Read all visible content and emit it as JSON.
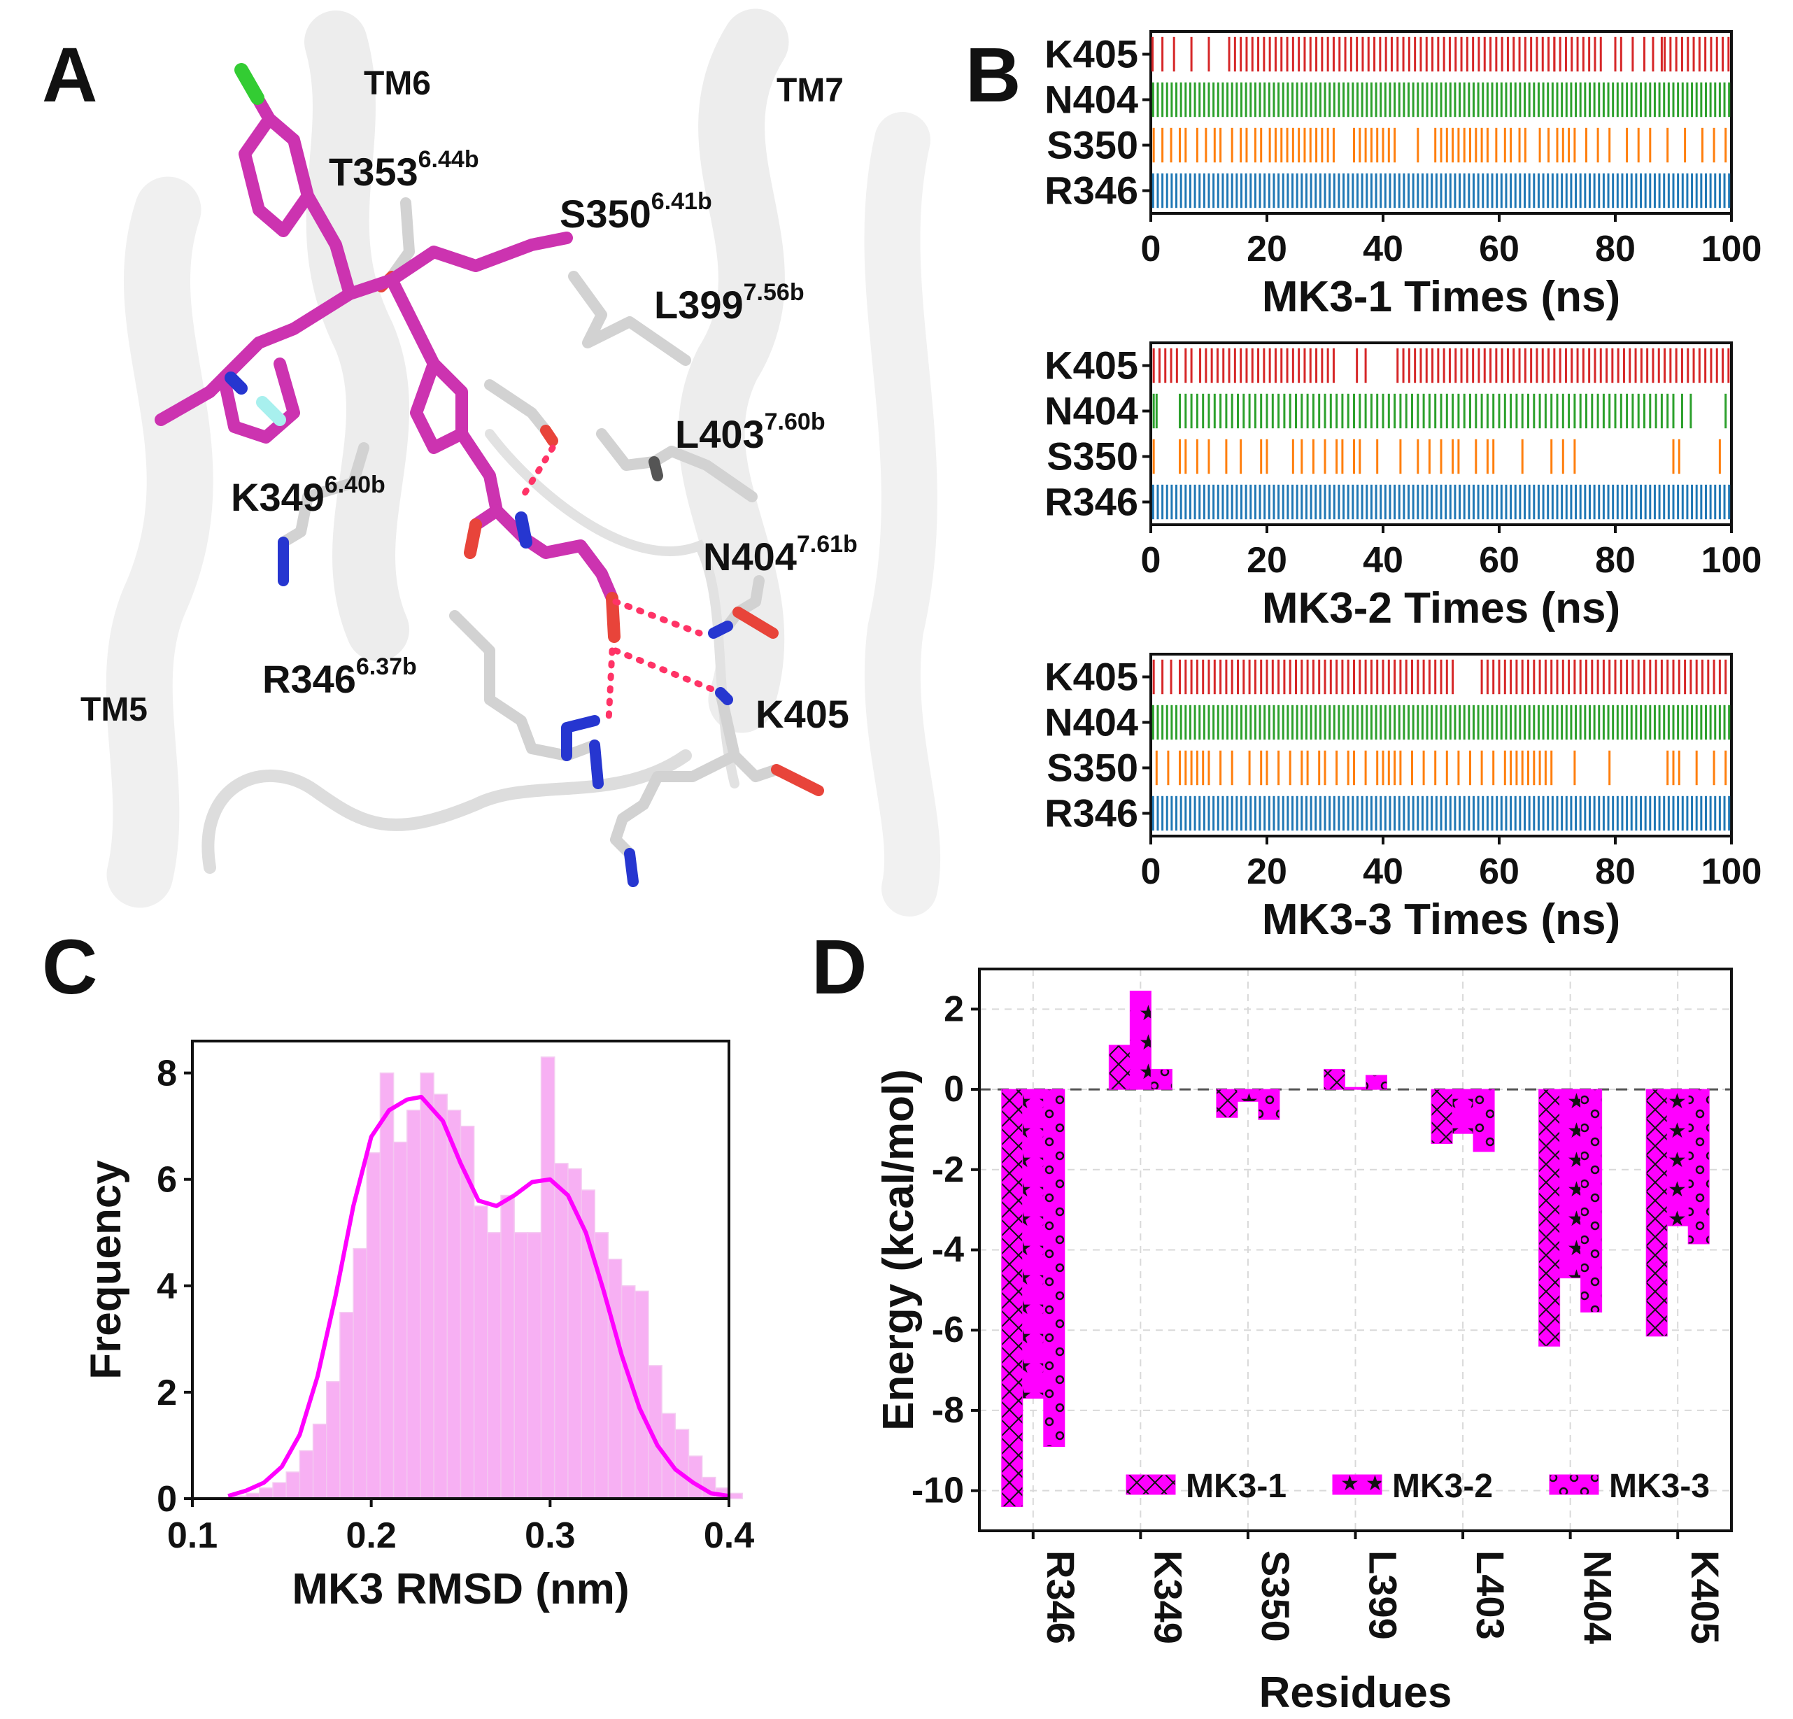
{
  "colors": {
    "magenta": "#cc33b0",
    "residue": "#d7d7d7",
    "oxygen": "#e8443a",
    "nitrogen": "#2636d0",
    "chlorine": "#33cc33",
    "fluorine": "#a8f0ee",
    "hbond": "#ff3366",
    "cartoon": "#ececec",
    "red": "#d62728",
    "green": "#2ca02c",
    "orange": "#ff7f0e",
    "blue": "#1f77b4",
    "hist": "#f7a8f2",
    "kde": "#ff00ff",
    "bar": "#ff00ff"
  },
  "panel_a": {
    "letter": "A",
    "helices": [
      "TM6",
      "TM7",
      "TM5"
    ],
    "residues": [
      {
        "id": "t353",
        "name": "T353",
        "sup": "6.44b"
      },
      {
        "id": "s350",
        "name": "S350",
        "sup": "6.41b"
      },
      {
        "id": "l399",
        "name": "L399",
        "sup": "7.56b"
      },
      {
        "id": "l403",
        "name": "L403",
        "sup": "7.60b"
      },
      {
        "id": "k349",
        "name": "K349",
        "sup": "6.40b"
      },
      {
        "id": "n404",
        "name": "N404",
        "sup": "7.61b"
      },
      {
        "id": "r346",
        "name": "R346",
        "sup": "6.37b"
      },
      {
        "id": "k405",
        "name": "K405",
        "sup": ""
      }
    ]
  },
  "panel_b": {
    "letter": "B",
    "subplots": [
      {
        "xlabel": "MK3-1 Times (ns)",
        "rows": [
          {
            "label": "K405",
            "color": "red",
            "events": [
              0.3,
              2,
              4,
              7,
              10,
              13.5,
              14.5,
              15.5,
              16.5,
              17.5,
              18.5,
              19.5,
              20.5,
              21.5,
              22.5,
              23.5,
              24.5,
              25.5,
              26.5,
              27.5,
              28.5,
              29.5,
              30.5,
              31.5,
              32.5,
              33.5,
              34.5,
              35.5,
              36.5,
              37.5,
              38.5,
              39.5,
              40.5,
              41.5,
              42.5,
              43.5,
              44.5,
              45.5,
              46.5,
              47.5,
              48.5,
              49.5,
              50.5,
              51.5,
              52.5,
              53.5,
              54.5,
              55.5,
              56.5,
              57.5,
              58.5,
              59.5,
              60.5,
              61.5,
              62.5,
              63.5,
              64.5,
              65.5,
              66.5,
              67.5,
              68.5,
              69.5,
              69.5,
              70.5,
              71.5,
              72.5,
              73.5,
              74.5,
              75.5,
              76.5,
              77.5,
              80,
              81,
              83,
              85,
              86.5,
              88,
              88.5,
              89.5,
              90.5,
              91.5,
              92.5,
              93.5,
              94.5,
              95.5,
              96.5,
              97.5,
              98.5,
              99.5
            ]
          },
          {
            "label": "N404",
            "color": "green",
            "events": "dense"
          },
          {
            "label": "S350",
            "color": "orange",
            "events": [
              0.5,
              2,
              3.5,
              5,
              6,
              8,
              9.5,
              11,
              12,
              14,
              15.5,
              16.5,
              18,
              19,
              20.5,
              21.5,
              22.5,
              23.5,
              24.5,
              25.5,
              26.5,
              27.5,
              28.5,
              29.5,
              30.5,
              31.5,
              35,
              36,
              37,
              38,
              39,
              40,
              41,
              42,
              46,
              49,
              50,
              51,
              52,
              53,
              54,
              55,
              56,
              57,
              58,
              59.5,
              61,
              62,
              63.5,
              64.5,
              67,
              68.5,
              70,
              71,
              72,
              73,
              75,
              77,
              79,
              82,
              84,
              86,
              89,
              92,
              95,
              97,
              99
            ]
          },
          {
            "label": "R346",
            "color": "blue",
            "events": "dense"
          }
        ]
      },
      {
        "xlabel": "MK3-2 Times (ns)",
        "rows": [
          {
            "label": "K405",
            "color": "red",
            "events": [
              0.5,
              1.5,
              2.5,
              3.5,
              4.5,
              6,
              7,
              8.5,
              9.5,
              10.5,
              11.5,
              12.5,
              13.5,
              14.5,
              15.5,
              16.5,
              17.5,
              18.5,
              19.5,
              20.5,
              21.5,
              22.5,
              23.5,
              24.5,
              25.5,
              26.5,
              27.5,
              28.5,
              29.5,
              30.5,
              31.5,
              35.5,
              37,
              42.5,
              43.5,
              44.5,
              45.5,
              46.5,
              47.5,
              48.5,
              49.5,
              50.5,
              51.5,
              52.5,
              53.5,
              54.5,
              55.5,
              56.5,
              57.5,
              58.5,
              59.5,
              60.5,
              61.5,
              62.5,
              63.5,
              64.5,
              65.5,
              66.5,
              67.5,
              68.5,
              69.5,
              70.5,
              71.5,
              72.5,
              73.5,
              74.5,
              75.5,
              76.5,
              77.5,
              78.5,
              79.5,
              80.5,
              81.5,
              82.5,
              83.5,
              84.5,
              85.5,
              86.5,
              87.5,
              88.5,
              89.5,
              90.5,
              91.5,
              92.5,
              93.5,
              94.5,
              95.5,
              96.5,
              97.5,
              98.5,
              99.5
            ]
          },
          {
            "label": "N404",
            "color": "green",
            "events": [
              0.5,
              1,
              5,
              6,
              7,
              8,
              9,
              10,
              11,
              12,
              13,
              14,
              15,
              16,
              17,
              18,
              19,
              20,
              21,
              22,
              23,
              24,
              25,
              26,
              27,
              28,
              29,
              30,
              31,
              32,
              33,
              34,
              35,
              36,
              37,
              38,
              39,
              40,
              41,
              42,
              43,
              44,
              45,
              46,
              47,
              48,
              49,
              50,
              51,
              52,
              53,
              54,
              55,
              56,
              57,
              58,
              59,
              60,
              61,
              62,
              63,
              64,
              65,
              66,
              67,
              68,
              69,
              70,
              71,
              72,
              73,
              74,
              75,
              76,
              77,
              78,
              79,
              80,
              81,
              82,
              83,
              84,
              85,
              86,
              87,
              88,
              89,
              90,
              91.5,
              93,
              99
            ]
          },
          {
            "label": "S350",
            "color": "orange",
            "events": [
              0.5,
              5,
              6,
              8,
              10,
              13,
              15.5,
              19,
              20,
              24.5,
              26,
              28,
              30,
              32,
              33,
              35,
              36,
              39,
              43,
              46,
              48,
              50,
              52,
              53,
              56,
              58,
              59,
              64,
              69,
              71,
              73,
              90,
              91,
              98
            ]
          },
          {
            "label": "R346",
            "color": "blue",
            "events": "dense"
          }
        ]
      },
      {
        "xlabel": "MK3-3 Times (ns)",
        "rows": [
          {
            "label": "K405",
            "color": "red",
            "events": [
              0.5,
              2,
              3.5,
              5,
              6,
              7,
              8,
              9,
              10,
              11,
              12,
              13,
              14,
              15,
              16,
              17,
              18,
              19,
              20,
              21,
              22,
              23,
              24,
              25,
              26,
              27,
              28,
              29,
              30,
              31,
              32,
              33,
              34,
              35,
              36,
              37,
              38,
              39,
              40,
              41,
              42,
              43,
              44,
              45,
              46,
              47,
              48,
              49,
              50,
              51,
              52,
              57,
              58,
              59,
              60,
              61,
              62,
              63,
              64,
              65,
              66,
              67,
              68,
              69,
              70,
              71,
              72,
              73,
              74,
              75,
              76,
              77,
              78,
              79,
              80,
              81,
              82,
              83,
              84,
              85,
              86,
              87,
              88,
              89,
              90,
              91,
              92,
              93,
              94,
              95,
              96,
              97,
              98,
              99
            ]
          },
          {
            "label": "N404",
            "color": "green",
            "events": "dense"
          },
          {
            "label": "S350",
            "color": "orange",
            "events": [
              1,
              3,
              5,
              6,
              7,
              8,
              9,
              10,
              12,
              14,
              17,
              19,
              20,
              22,
              24,
              26,
              27,
              29,
              30,
              32,
              34,
              35,
              37,
              39,
              40,
              41,
              42,
              43,
              45,
              47,
              49,
              51,
              53,
              55,
              57,
              59,
              61,
              62,
              63,
              64,
              65,
              66,
              67,
              68,
              69,
              73,
              79,
              89,
              90,
              91,
              94,
              97,
              99
            ]
          },
          {
            "label": "R346",
            "color": "blue",
            "events": "dense"
          }
        ]
      }
    ]
  },
  "chart_data": [
    {
      "panel": "C",
      "type": "histogram",
      "title": "",
      "xlabel": "MK3 RMSD (nm)",
      "ylabel": "Frequency",
      "xlim": [
        0.1,
        0.4
      ],
      "ylim": [
        0,
        8.6
      ],
      "xticks": [
        "0.1",
        "0.2",
        "0.3",
        "0.4"
      ],
      "yticks": [
        "0",
        "2",
        "4",
        "6",
        "8"
      ],
      "bin_start": 0.1,
      "bin_width": 0.0075,
      "counts": [
        0.0,
        0.0,
        0.0,
        0.05,
        0.1,
        0.2,
        0.3,
        0.5,
        0.9,
        1.4,
        2.2,
        3.5,
        4.7,
        6.5,
        8.0,
        6.7,
        7.3,
        8.0,
        7.6,
        7.3,
        7.0,
        5.5,
        5.0,
        5.7,
        5.0,
        5.0,
        8.3,
        6.3,
        6.2,
        5.8,
        5.0,
        4.5,
        4.0,
        3.9,
        2.5,
        1.6,
        1.3,
        0.8,
        0.4,
        0.2,
        0.1
      ],
      "kde": {
        "x": [
          0.12,
          0.13,
          0.14,
          0.15,
          0.16,
          0.17,
          0.18,
          0.19,
          0.2,
          0.21,
          0.22,
          0.228,
          0.24,
          0.25,
          0.26,
          0.27,
          0.28,
          0.29,
          0.3,
          0.31,
          0.32,
          0.33,
          0.34,
          0.35,
          0.36,
          0.37,
          0.38,
          0.39,
          0.4
        ],
        "y": [
          0.05,
          0.15,
          0.3,
          0.6,
          1.2,
          2.3,
          3.8,
          5.5,
          6.8,
          7.3,
          7.5,
          7.55,
          7.1,
          6.3,
          5.6,
          5.5,
          5.7,
          5.95,
          6.0,
          5.7,
          5.0,
          3.9,
          2.7,
          1.7,
          1.0,
          0.55,
          0.3,
          0.1,
          0.05
        ]
      }
    },
    {
      "panel": "D",
      "type": "bar",
      "title": "",
      "xlabel": "Residues",
      "ylabel": "Energy (kcal/mol)",
      "ylim": [
        -11,
        3
      ],
      "yticks": [
        "2",
        "0",
        "-2",
        "-4",
        "-6",
        "-8",
        "-10"
      ],
      "categories": [
        "R346",
        "K349",
        "S350",
        "L399",
        "L403",
        "N404",
        "K405"
      ],
      "series": [
        {
          "name": "MK3-1",
          "hatch": "x",
          "values": [
            -10.4,
            1.1,
            -0.7,
            0.5,
            -1.35,
            -6.4,
            -6.15
          ]
        },
        {
          "name": "MK3-2",
          "hatch": "star",
          "values": [
            -7.7,
            2.45,
            -0.3,
            0.05,
            -1.1,
            -4.7,
            -3.4
          ]
        },
        {
          "name": "MK3-3",
          "hatch": "circle",
          "values": [
            -8.9,
            0.5,
            -0.75,
            0.35,
            -1.55,
            -5.55,
            -3.85
          ]
        }
      ]
    }
  ]
}
